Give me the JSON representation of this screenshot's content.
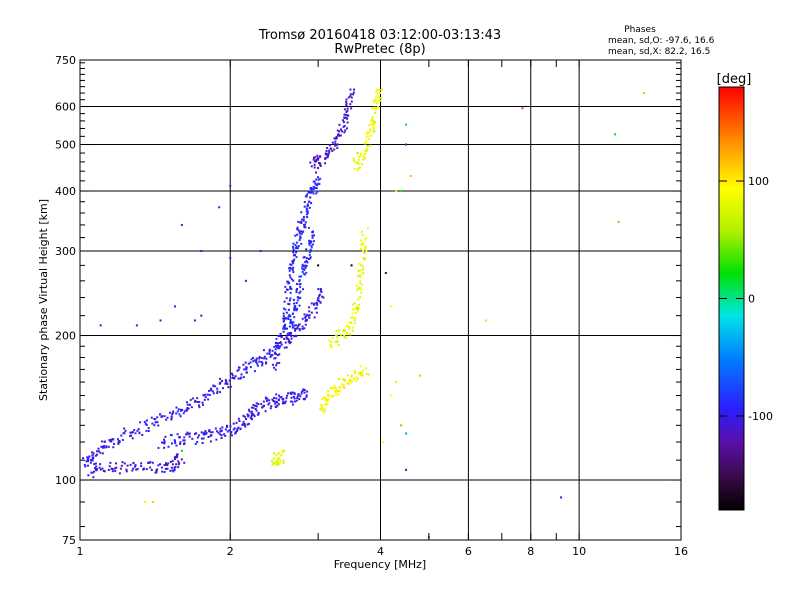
{
  "chart_data": {
    "type": "scatter",
    "title": "Tromsø 20160418 03:12:00-03:13:43",
    "subtitle": "RwPretec (8p)",
    "xlabel": "Frequency [MHz]",
    "ylabel": "Stationary phase Virtual Height [km]",
    "x_scale": "log",
    "y_scale": "log",
    "xlim": [
      1,
      16
    ],
    "ylim": [
      75,
      750
    ],
    "x_ticks": [
      1,
      2,
      3,
      4,
      5,
      6,
      7,
      8,
      9,
      10,
      16
    ],
    "x_tick_labels": [
      "1",
      "2",
      "",
      "4",
      "",
      "6",
      "",
      "8",
      "",
      "10",
      "16"
    ],
    "x_gridlines": [
      2,
      4,
      6,
      8,
      10
    ],
    "y_ticks": [
      75,
      100,
      200,
      300,
      400,
      500,
      600,
      750
    ],
    "y_tick_labels": [
      "75",
      "100",
      "200",
      "300",
      "400",
      "500",
      "600",
      "750"
    ],
    "y_gridlines": [
      100,
      200,
      300,
      400,
      500,
      600
    ],
    "grid": true,
    "legend": {
      "title": "Phases",
      "line1": "mean, sd,O: -97.6, 16.6",
      "line2": "mean, sd,X:  82.2, 16.5",
      "placement": "top-right"
    },
    "colorbar": {
      "label": "[deg]",
      "range": [
        -180,
        180
      ],
      "ticks": [
        100,
        0,
        -100
      ],
      "tick_labels": [
        "100",
        "0",
        "-100"
      ],
      "placement": "right"
    },
    "trace_segments": [
      {
        "name": "O-trace-lower",
        "phase": -100,
        "points": [
          [
            1.02,
            108
          ],
          [
            1.05,
            112
          ],
          [
            1.1,
            116
          ],
          [
            1.15,
            119
          ],
          [
            1.22,
            124
          ],
          [
            1.3,
            127
          ],
          [
            1.4,
            132
          ],
          [
            1.5,
            136
          ],
          [
            1.6,
            140
          ],
          [
            1.7,
            145
          ],
          [
            1.8,
            150
          ],
          [
            1.9,
            156
          ],
          [
            2.0,
            162
          ],
          [
            2.1,
            168
          ],
          [
            2.2,
            173
          ],
          [
            2.3,
            178
          ],
          [
            2.4,
            184
          ],
          [
            2.5,
            190
          ],
          [
            2.6,
            196
          ],
          [
            2.7,
            204
          ],
          [
            2.8,
            212
          ],
          [
            2.9,
            222
          ],
          [
            3.0,
            235
          ],
          [
            3.05,
            250
          ]
        ]
      },
      {
        "name": "O-trace-E-flat",
        "phase": -105,
        "points": [
          [
            1.05,
            104
          ],
          [
            1.1,
            106
          ],
          [
            1.2,
            106
          ],
          [
            1.3,
            106
          ],
          [
            1.4,
            106
          ],
          [
            1.5,
            107
          ],
          [
            1.55,
            108
          ],
          [
            1.6,
            112
          ]
        ]
      },
      {
        "name": "O-trace-second",
        "phase": -100,
        "points": [
          [
            1.45,
            120
          ],
          [
            1.55,
            121
          ],
          [
            1.65,
            122
          ],
          [
            1.75,
            123
          ],
          [
            1.85,
            124
          ],
          [
            1.95,
            126
          ],
          [
            2.05,
            128
          ],
          [
            2.12,
            132
          ],
          [
            2.18,
            136
          ],
          [
            2.25,
            140
          ],
          [
            2.35,
            144
          ],
          [
            2.45,
            146
          ],
          [
            2.55,
            147
          ],
          [
            2.65,
            148
          ],
          [
            2.75,
            150
          ],
          [
            2.85,
            153
          ]
        ]
      },
      {
        "name": "O-trace-F-vertical",
        "phase": -95,
        "points": [
          [
            2.45,
            170
          ],
          [
            2.5,
            190
          ],
          [
            2.55,
            210
          ],
          [
            2.6,
            230
          ],
          [
            2.62,
            250
          ],
          [
            2.65,
            270
          ],
          [
            2.68,
            290
          ],
          [
            2.72,
            310
          ],
          [
            2.76,
            330
          ],
          [
            2.8,
            350
          ],
          [
            2.85,
            370
          ],
          [
            2.9,
            390
          ],
          [
            2.95,
            410
          ],
          [
            3.0,
            430
          ]
        ]
      },
      {
        "name": "O-trace-F-upper",
        "phase": -110,
        "points": [
          [
            2.9,
            450
          ],
          [
            3.0,
            460
          ],
          [
            3.1,
            470
          ],
          [
            3.2,
            490
          ],
          [
            3.3,
            520
          ],
          [
            3.4,
            560
          ],
          [
            3.45,
            600
          ],
          [
            3.5,
            640
          ]
        ]
      },
      {
        "name": "O-trace-mid-band",
        "phase": -90,
        "points": [
          [
            2.6,
            200
          ],
          [
            2.65,
            215
          ],
          [
            2.7,
            230
          ],
          [
            2.75,
            250
          ],
          [
            2.8,
            270
          ],
          [
            2.85,
            290
          ],
          [
            2.9,
            310
          ],
          [
            2.92,
            330
          ]
        ]
      },
      {
        "name": "X-trace-upper",
        "phase": 85,
        "points": [
          [
            3.55,
            450
          ],
          [
            3.65,
            470
          ],
          [
            3.75,
            500
          ],
          [
            3.85,
            540
          ],
          [
            3.9,
            580
          ],
          [
            3.95,
            620
          ],
          [
            4.0,
            650
          ]
        ]
      },
      {
        "name": "X-trace-middle",
        "phase": 80,
        "points": [
          [
            3.2,
            190
          ],
          [
            3.3,
            200
          ],
          [
            3.45,
            205
          ],
          [
            3.55,
            220
          ],
          [
            3.6,
            240
          ],
          [
            3.65,
            270
          ],
          [
            3.7,
            300
          ],
          [
            3.72,
            330
          ]
        ]
      },
      {
        "name": "X-trace-lower",
        "phase": 90,
        "points": [
          [
            3.05,
            140
          ],
          [
            3.1,
            145
          ],
          [
            3.2,
            152
          ],
          [
            3.3,
            158
          ],
          [
            3.45,
            162
          ],
          [
            3.6,
            165
          ],
          [
            3.75,
            170
          ]
        ]
      },
      {
        "name": "X-trace-blob",
        "phase": 80,
        "points": [
          [
            2.45,
            110
          ],
          [
            2.5,
            111
          ],
          [
            2.55,
            112
          ]
        ]
      }
    ],
    "scattered_points": [
      [
        1.1,
        210,
        -110
      ],
      [
        1.3,
        210,
        -110
      ],
      [
        1.45,
        215,
        -110
      ],
      [
        1.55,
        230,
        -100
      ],
      [
        1.6,
        340,
        -110
      ],
      [
        1.75,
        300,
        -105
      ],
      [
        1.9,
        370,
        -95
      ],
      [
        2.0,
        410,
        -90
      ],
      [
        1.75,
        220,
        -110
      ],
      [
        1.7,
        215,
        -110
      ],
      [
        2.15,
        260,
        -100
      ],
      [
        2.3,
        300,
        -100
      ],
      [
        2.0,
        290,
        -95
      ],
      [
        4.1,
        270,
        -150
      ],
      [
        4.2,
        230,
        90
      ],
      [
        4.3,
        400,
        90
      ],
      [
        4.4,
        400,
        30
      ],
      [
        4.5,
        550,
        -30
      ],
      [
        4.6,
        430,
        120
      ],
      [
        4.5,
        500,
        -110
      ],
      [
        4.5,
        105,
        -120
      ],
      [
        4.3,
        160,
        80
      ],
      [
        4.2,
        150,
        90
      ],
      [
        4.8,
        165,
        50
      ],
      [
        5.0,
        76,
        -50
      ],
      [
        6.5,
        215,
        110
      ],
      [
        7.7,
        595,
        160
      ],
      [
        9.2,
        92,
        -100
      ],
      [
        11.8,
        525,
        20
      ],
      [
        12.0,
        345,
        40
      ],
      [
        13.5,
        640,
        120
      ],
      [
        1.35,
        90,
        100
      ],
      [
        1.4,
        90,
        110
      ],
      [
        1.6,
        115,
        20
      ],
      [
        3.0,
        280,
        -180
      ],
      [
        3.5,
        280,
        -180
      ],
      [
        4.05,
        120,
        90
      ],
      [
        4.4,
        130,
        40
      ],
      [
        4.5,
        125,
        -40
      ]
    ]
  }
}
